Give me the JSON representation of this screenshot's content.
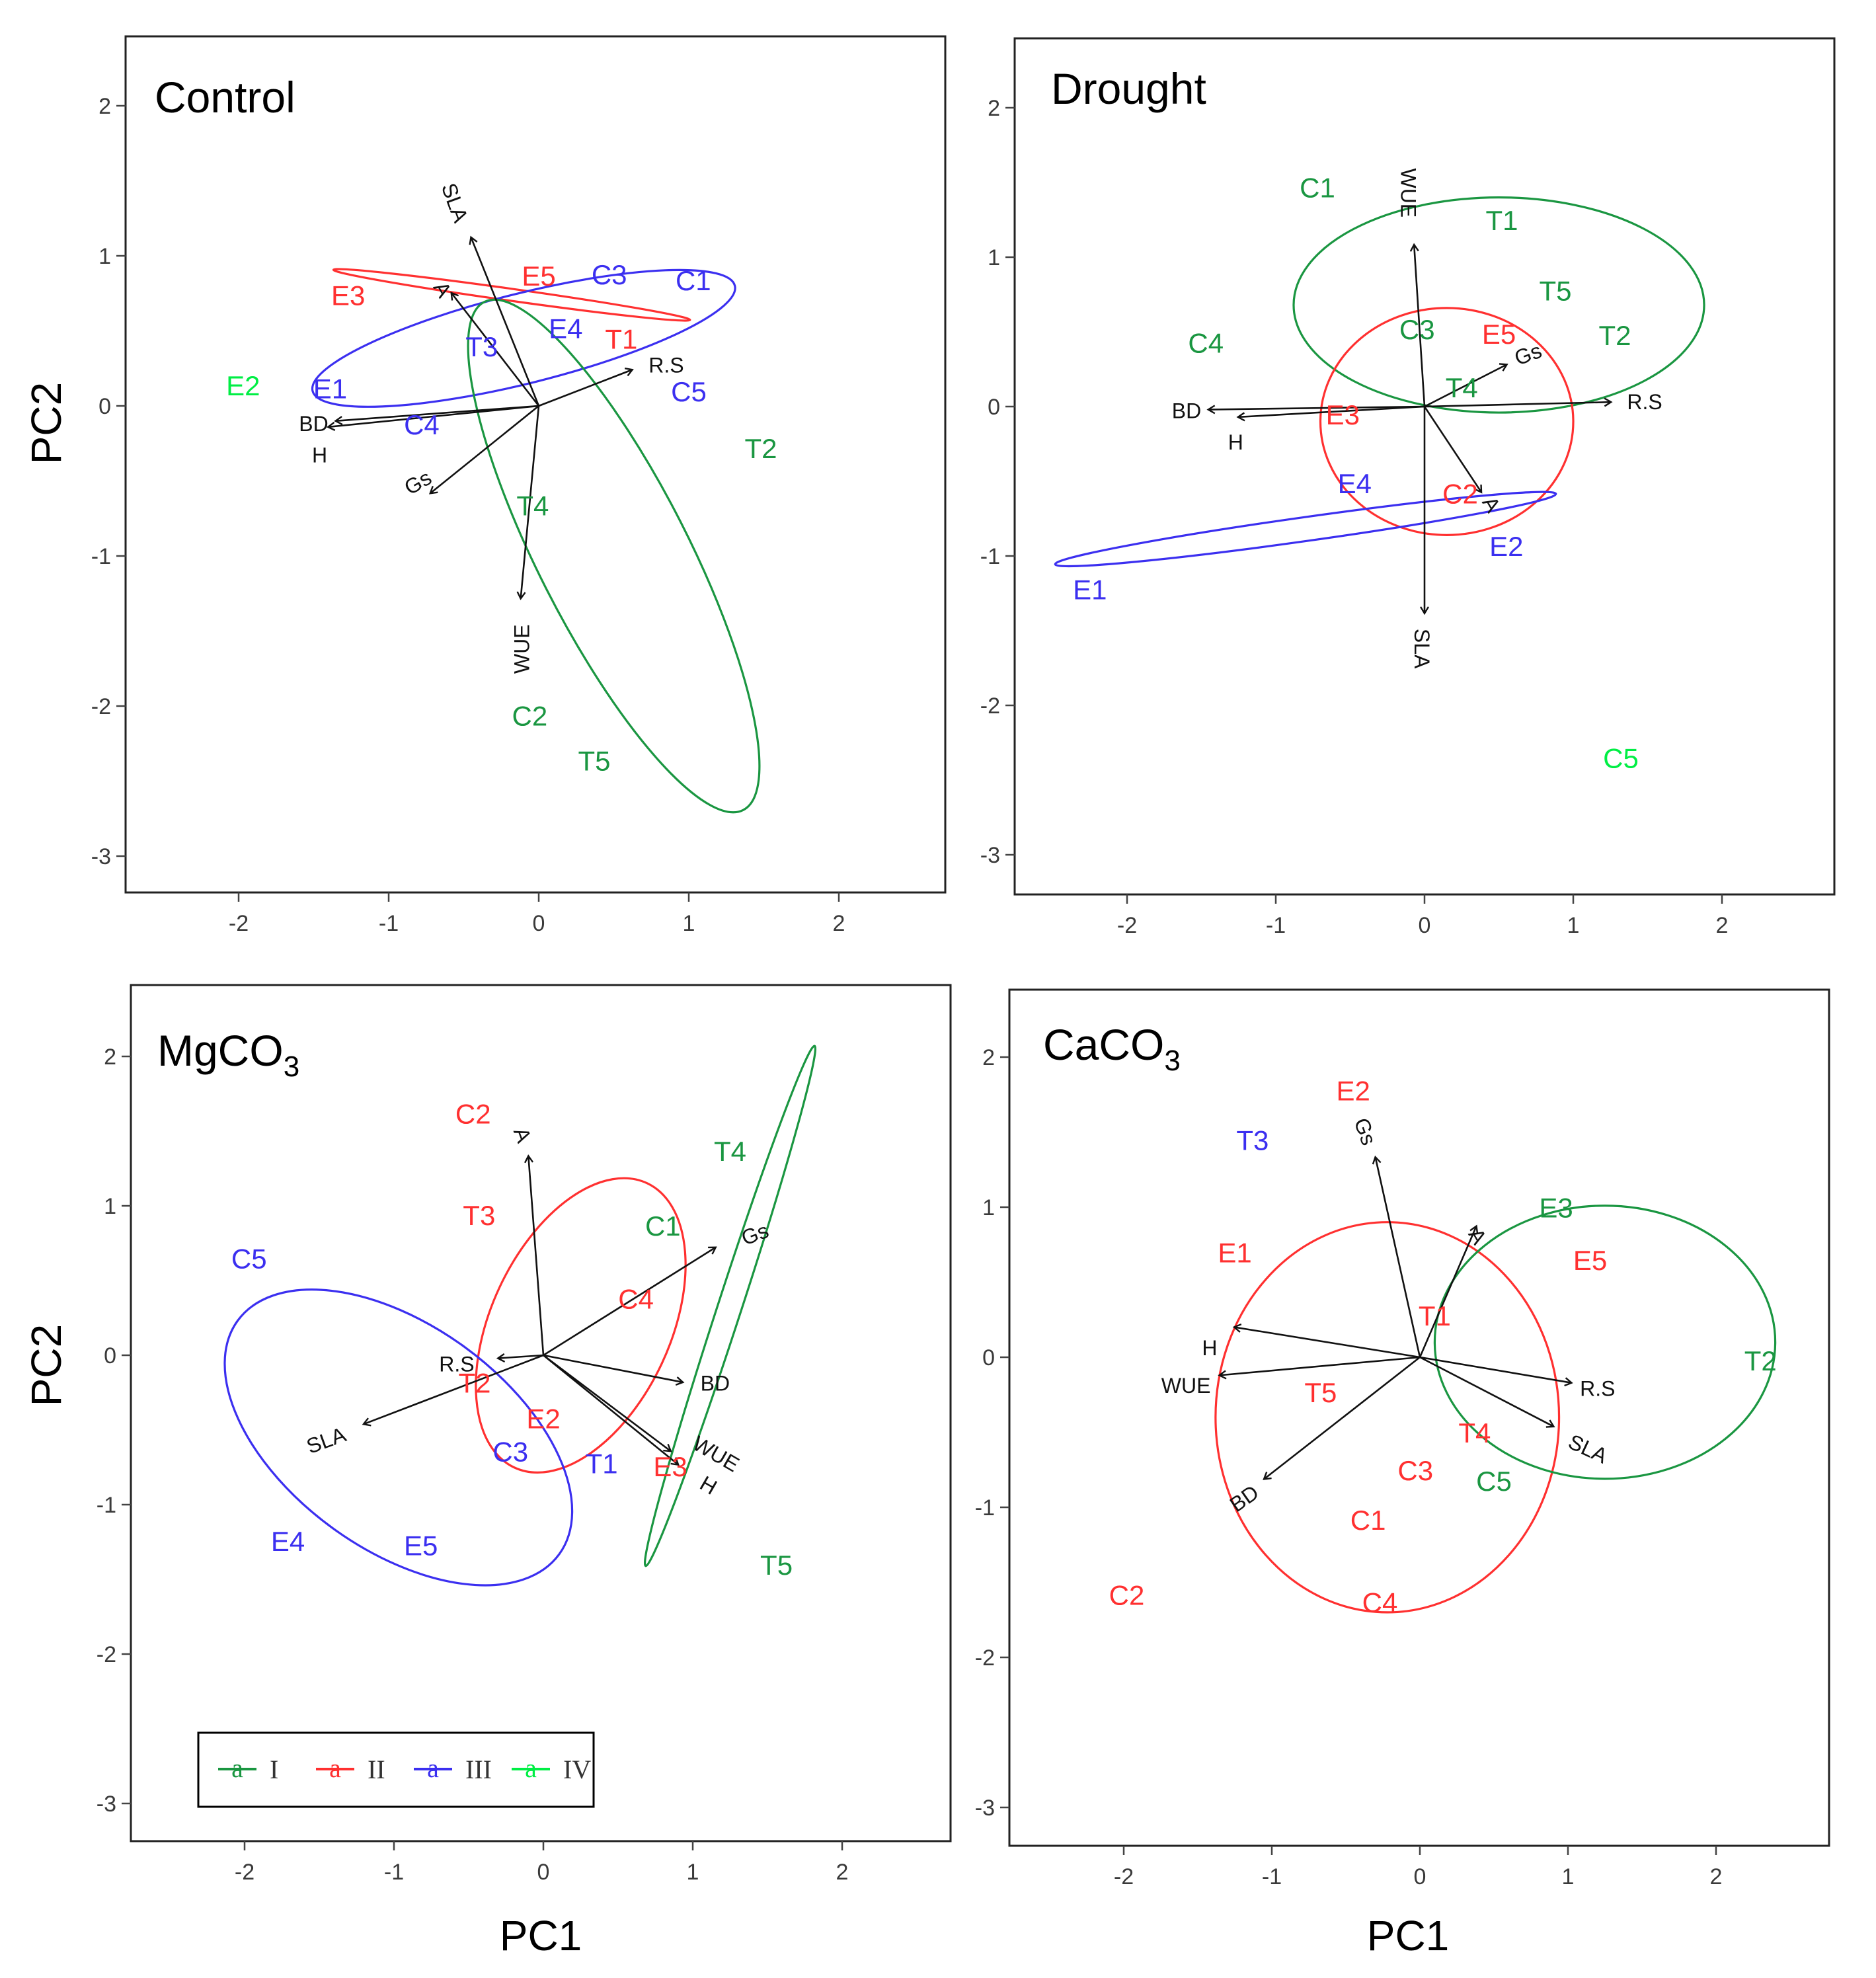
{
  "figure": {
    "x_axis_title": "PC1",
    "y_axis_title": "PC2"
  },
  "colors": {
    "I": "#1a9641",
    "II": "#ff3030",
    "III": "#3b2ff0",
    "IV": "#00ee44",
    "arrow": "#111111"
  },
  "legend": {
    "symbol": "a",
    "entries": [
      {
        "group": "I",
        "label": "I"
      },
      {
        "group": "II",
        "label": "II"
      },
      {
        "group": "III",
        "label": "III"
      },
      {
        "group": "IV",
        "label": "IV"
      }
    ]
  },
  "chart_data": [
    {
      "type": "scatter",
      "title": "Control",
      "xlabel": "PC1",
      "ylabel": "PC2",
      "xlim": [
        -2.75,
        2.75
      ],
      "ylim": [
        -3.25,
        2.5
      ],
      "xticks": [
        "-2",
        "-1",
        "0",
        "1",
        "2"
      ],
      "yticks": [
        "-3",
        "-2",
        "-1",
        "0",
        "1",
        "2"
      ],
      "points": [
        {
          "label": "E3",
          "group": "II",
          "x": -1.27,
          "y": 0.72
        },
        {
          "label": "E5",
          "group": "II",
          "x": 0.0,
          "y": 0.85
        },
        {
          "label": "C3",
          "group": "III",
          "x": 0.47,
          "y": 0.86
        },
        {
          "label": "C1",
          "group": "III",
          "x": 1.03,
          "y": 0.82
        },
        {
          "label": "E4",
          "group": "III",
          "x": 0.18,
          "y": 0.5
        },
        {
          "label": "T1",
          "group": "II",
          "x": 0.55,
          "y": 0.43
        },
        {
          "label": "T3",
          "group": "III",
          "x": -0.38,
          "y": 0.38
        },
        {
          "label": "E2",
          "group": "IV",
          "x": -1.97,
          "y": 0.12
        },
        {
          "label": "E1",
          "group": "III",
          "x": -1.39,
          "y": 0.1
        },
        {
          "label": "C4",
          "group": "III",
          "x": -0.78,
          "y": -0.14
        },
        {
          "label": "C5",
          "group": "III",
          "x": 1.0,
          "y": 0.08
        },
        {
          "label": "T2",
          "group": "I",
          "x": 1.48,
          "y": -0.3
        },
        {
          "label": "T4",
          "group": "I",
          "x": -0.04,
          "y": -0.68
        },
        {
          "label": "C2",
          "group": "I",
          "x": -0.06,
          "y": -2.08
        },
        {
          "label": "T5",
          "group": "I",
          "x": 0.37,
          "y": -2.38
        }
      ],
      "vectors": [
        {
          "label": "SLA",
          "x": -0.45,
          "y": 1.12,
          "lx": -0.57,
          "ly": 1.35,
          "rot": 70
        },
        {
          "label": "A",
          "x": -0.58,
          "y": 0.75,
          "lx": -0.65,
          "ly": 0.77,
          "rot": 60
        },
        {
          "label": "R.S",
          "x": 0.62,
          "y": 0.24,
          "lx": 0.85,
          "ly": 0.26,
          "rot": 0
        },
        {
          "label": "BD",
          "x": -1.35,
          "y": -0.1,
          "lx": -1.5,
          "ly": -0.13,
          "rot": 0
        },
        {
          "label": "H",
          "x": -1.4,
          "y": -0.14,
          "lx": -1.46,
          "ly": -0.34,
          "rot": 0
        },
        {
          "label": "Gs",
          "x": -0.72,
          "y": -0.58,
          "lx": -0.8,
          "ly": -0.52,
          "rot": -30
        },
        {
          "label": "WUE",
          "x": -0.12,
          "y": -1.28,
          "lx": -0.1,
          "ly": -1.62,
          "rot": -90
        }
      ],
      "ellipses": [
        {
          "group": "II",
          "cx": -0.18,
          "cy": 0.74,
          "rx": 1.2,
          "ry": 0.04,
          "angle": -8
        },
        {
          "group": "III",
          "cx": -0.1,
          "cy": 0.45,
          "rx": 1.45,
          "ry": 0.3,
          "angle": 14
        },
        {
          "group": "I",
          "cx": 0.5,
          "cy": -1.0,
          "rx": 1.9,
          "ry": 0.5,
          "angle": -63
        }
      ]
    },
    {
      "type": "scatter",
      "title": "Drought",
      "xlabel": "PC1",
      "ylabel": "PC2",
      "xlim": [
        -2.75,
        2.75
      ],
      "ylim": [
        -3.25,
        2.5
      ],
      "xticks": [
        "-2",
        "-1",
        "0",
        "1",
        "2"
      ],
      "yticks": [
        "-3",
        "-2",
        "-1",
        "0",
        "1",
        "2"
      ],
      "points": [
        {
          "label": "C1",
          "group": "I",
          "x": -0.72,
          "y": 1.45
        },
        {
          "label": "T1",
          "group": "I",
          "x": 0.52,
          "y": 1.23
        },
        {
          "label": "T5",
          "group": "I",
          "x": 0.88,
          "y": 0.76
        },
        {
          "label": "C4",
          "group": "I",
          "x": -1.47,
          "y": 0.41
        },
        {
          "label": "C3",
          "group": "I",
          "x": -0.05,
          "y": 0.5
        },
        {
          "label": "E5",
          "group": "II",
          "x": 0.5,
          "y": 0.47
        },
        {
          "label": "T2",
          "group": "I",
          "x": 1.28,
          "y": 0.46
        },
        {
          "label": "T4",
          "group": "I",
          "x": 0.25,
          "y": 0.11
        },
        {
          "label": "E3",
          "group": "II",
          "x": -0.55,
          "y": -0.07
        },
        {
          "label": "E4",
          "group": "III",
          "x": -0.47,
          "y": -0.53
        },
        {
          "label": "C2",
          "group": "II",
          "x": 0.24,
          "y": -0.6
        },
        {
          "label": "E2",
          "group": "III",
          "x": 0.55,
          "y": -0.95
        },
        {
          "label": "E1",
          "group": "III",
          "x": -2.25,
          "y": -1.24
        },
        {
          "label": "C5",
          "group": "IV",
          "x": 1.32,
          "y": -2.37
        }
      ],
      "vectors": [
        {
          "label": "WUE",
          "x": -0.07,
          "y": 1.08,
          "lx": -0.12,
          "ly": 1.43,
          "rot": 90
        },
        {
          "label": "Gs",
          "x": 0.55,
          "y": 0.28,
          "lx": 0.7,
          "ly": 0.34,
          "rot": -20
        },
        {
          "label": "R.S",
          "x": 1.25,
          "y": 0.03,
          "lx": 1.48,
          "ly": 0.02,
          "rot": 0
        },
        {
          "label": "BD",
          "x": -1.45,
          "y": -0.02,
          "lx": -1.6,
          "ly": -0.04,
          "rot": 0
        },
        {
          "label": "H",
          "x": -1.25,
          "y": -0.07,
          "lx": -1.27,
          "ly": -0.25,
          "rot": 0
        },
        {
          "label": "A",
          "x": 0.38,
          "y": -0.57,
          "lx": 0.44,
          "ly": -0.66,
          "rot": 60
        },
        {
          "label": "SLA",
          "x": 0.0,
          "y": -1.38,
          "lx": -0.03,
          "ly": -1.62,
          "rot": 90
        }
      ],
      "ellipses": [
        {
          "group": "I",
          "cx": 0.5,
          "cy": 0.68,
          "rx": 1.38,
          "ry": 0.72,
          "angle": 0
        },
        {
          "group": "II",
          "cx": 0.15,
          "cy": -0.1,
          "rx": 0.85,
          "ry": 0.76,
          "angle": 0
        },
        {
          "group": "III",
          "cx": -0.8,
          "cy": -0.82,
          "rx": 1.7,
          "ry": 0.08,
          "angle": 8
        }
      ]
    },
    {
      "type": "scatter",
      "title": "MgCO",
      "title_subscript": "3",
      "xlabel": "PC1",
      "ylabel": "PC2",
      "xlim": [
        -2.75,
        2.75
      ],
      "ylim": [
        -3.25,
        2.5
      ],
      "xticks": [
        "-2",
        "-1",
        "0",
        "1",
        "2"
      ],
      "yticks": [
        "-3",
        "-2",
        "-1",
        "0",
        "1",
        "2"
      ],
      "points": [
        {
          "label": "C2",
          "group": "II",
          "x": -0.47,
          "y": 1.6
        },
        {
          "label": "T4",
          "group": "I",
          "x": 1.25,
          "y": 1.35
        },
        {
          "label": "T3",
          "group": "II",
          "x": -0.43,
          "y": 0.92
        },
        {
          "label": "C1",
          "group": "I",
          "x": 0.8,
          "y": 0.85
        },
        {
          "label": "C5",
          "group": "III",
          "x": -1.97,
          "y": 0.63
        },
        {
          "label": "C4",
          "group": "II",
          "x": 0.62,
          "y": 0.36
        },
        {
          "label": "T2",
          "group": "II",
          "x": -0.46,
          "y": -0.2
        },
        {
          "label": "E2",
          "group": "II",
          "x": 0.0,
          "y": -0.44
        },
        {
          "label": "C3",
          "group": "III",
          "x": -0.22,
          "y": -0.66
        },
        {
          "label": "T1",
          "group": "III",
          "x": 0.39,
          "y": -0.74
        },
        {
          "label": "E3",
          "group": "II",
          "x": 0.85,
          "y": -0.76
        },
        {
          "label": "T5",
          "group": "I",
          "x": 1.56,
          "y": -1.42
        },
        {
          "label": "E4",
          "group": "III",
          "x": -1.71,
          "y": -1.26
        },
        {
          "label": "E5",
          "group": "III",
          "x": -0.82,
          "y": -1.29
        }
      ],
      "vectors": [
        {
          "label": "A",
          "x": -0.1,
          "y": 1.33,
          "lx": -0.15,
          "ly": 1.47,
          "rot": 70
        },
        {
          "label": "Gs",
          "x": 1.15,
          "y": 0.72,
          "lx": 1.42,
          "ly": 0.8,
          "rot": -20
        },
        {
          "label": "R.S",
          "x": -0.3,
          "y": -0.02,
          "lx": -0.58,
          "ly": -0.07,
          "rot": 0
        },
        {
          "label": "SLA",
          "x": -1.2,
          "y": -0.46,
          "lx": -1.45,
          "ly": -0.58,
          "rot": -20
        },
        {
          "label": "BD",
          "x": 0.93,
          "y": -0.18,
          "lx": 1.15,
          "ly": -0.2,
          "rot": 0
        },
        {
          "label": "WUE",
          "x": 0.85,
          "y": -0.64,
          "lx": 1.15,
          "ly": -0.67,
          "rot": 30
        },
        {
          "label": "H",
          "x": 0.9,
          "y": -0.73,
          "lx": 1.1,
          "ly": -0.88,
          "rot": 30
        }
      ],
      "ellipses": [
        {
          "group": "II",
          "cx": 0.25,
          "cy": 0.2,
          "rx": 1.05,
          "ry": 0.6,
          "angle": 65
        },
        {
          "group": "III",
          "cx": -0.97,
          "cy": -0.55,
          "rx": 1.33,
          "ry": 0.75,
          "angle": -36
        },
        {
          "group": "I",
          "cx": 1.25,
          "cy": 0.33,
          "rx": 1.83,
          "ry": 0.08,
          "angle": 72
        }
      ]
    },
    {
      "type": "scatter",
      "title": "CaCO",
      "title_subscript": "3",
      "xlabel": "PC1",
      "ylabel": "PC2",
      "xlim": [
        -2.75,
        2.75
      ],
      "ylim": [
        -3.25,
        2.5
      ],
      "xticks": [
        "-2",
        "-1",
        "0",
        "1",
        "2"
      ],
      "yticks": [
        "-3",
        "-2",
        "-1",
        "0",
        "1",
        "2"
      ],
      "points": [
        {
          "label": "E2",
          "group": "II",
          "x": -0.45,
          "y": 1.76
        },
        {
          "label": "T3",
          "group": "III",
          "x": -1.13,
          "y": 1.43
        },
        {
          "label": "E3",
          "group": "I",
          "x": 0.92,
          "y": 0.98
        },
        {
          "label": "E1",
          "group": "II",
          "x": -1.25,
          "y": 0.68
        },
        {
          "label": "E5",
          "group": "II",
          "x": 1.15,
          "y": 0.63
        },
        {
          "label": "T1",
          "group": "II",
          "x": 0.1,
          "y": 0.26
        },
        {
          "label": "T2",
          "group": "I",
          "x": 2.3,
          "y": -0.04
        },
        {
          "label": "T5",
          "group": "II",
          "x": -0.67,
          "y": -0.25
        },
        {
          "label": "T4",
          "group": "II",
          "x": 0.37,
          "y": -0.52
        },
        {
          "label": "C3",
          "group": "II",
          "x": -0.03,
          "y": -0.77
        },
        {
          "label": "C5",
          "group": "I",
          "x": 0.5,
          "y": -0.84
        },
        {
          "label": "C1",
          "group": "II",
          "x": -0.35,
          "y": -1.1
        },
        {
          "label": "C4",
          "group": "II",
          "x": -0.27,
          "y": -1.65
        },
        {
          "label": "C2",
          "group": "II",
          "x": -1.98,
          "y": -1.6
        }
      ],
      "vectors": [
        {
          "label": "Gs",
          "x": -0.3,
          "y": 1.33,
          "lx": -0.38,
          "ly": 1.5,
          "rot": 70
        },
        {
          "label": "A",
          "x": 0.38,
          "y": 0.87,
          "lx": 0.38,
          "ly": 0.8,
          "rot": 60
        },
        {
          "label": "H",
          "x": -1.25,
          "y": 0.2,
          "lx": -1.42,
          "ly": 0.05,
          "rot": 0
        },
        {
          "label": "WUE",
          "x": -1.35,
          "y": -0.12,
          "lx": -1.58,
          "ly": -0.2,
          "rot": 0
        },
        {
          "label": "R.S",
          "x": 1.02,
          "y": -0.17,
          "lx": 1.2,
          "ly": -0.22,
          "rot": 0
        },
        {
          "label": "SLA",
          "x": 0.9,
          "y": -0.46,
          "lx": 1.13,
          "ly": -0.62,
          "rot": 25
        },
        {
          "label": "BD",
          "x": -1.05,
          "y": -0.81,
          "lx": -1.18,
          "ly": -0.95,
          "rot": -35
        }
      ],
      "ellipses": [
        {
          "group": "II",
          "cx": -0.22,
          "cy": -0.4,
          "rx": 1.16,
          "ry": 1.3,
          "angle": 0
        },
        {
          "group": "I",
          "cx": 1.25,
          "cy": 0.1,
          "rx": 1.15,
          "ry": 0.91,
          "angle": 0
        }
      ]
    }
  ]
}
